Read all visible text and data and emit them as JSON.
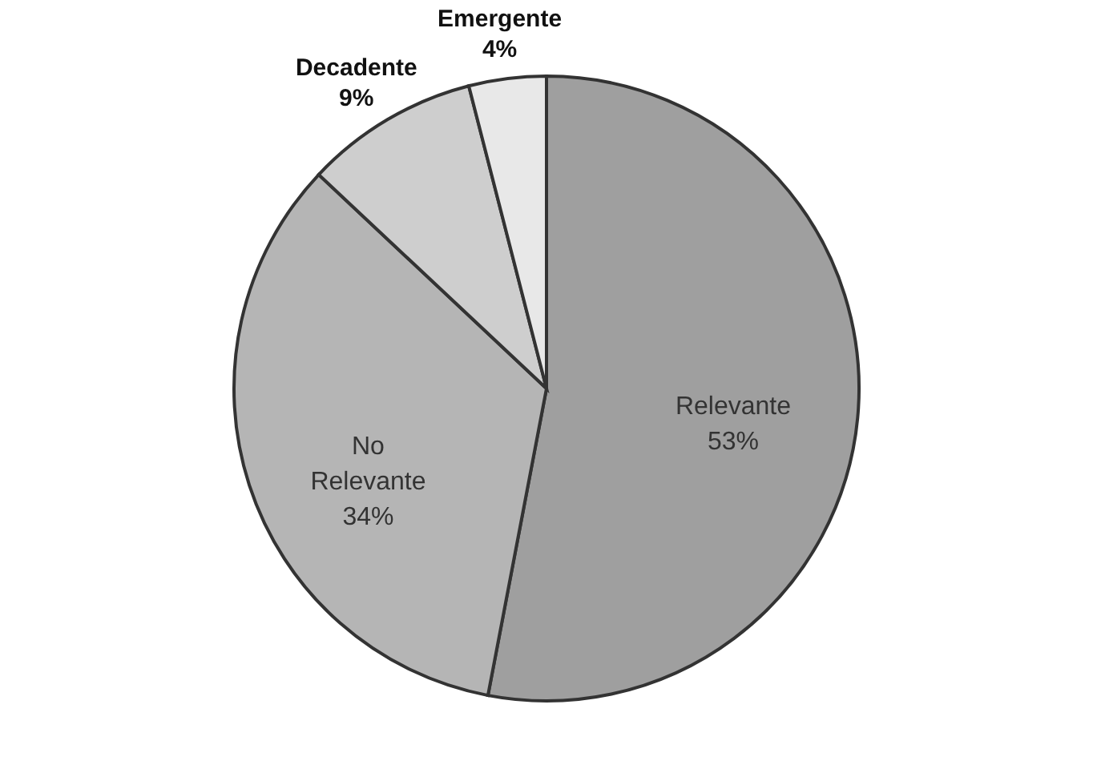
{
  "chart_data": {
    "type": "pie",
    "categories": [
      "Relevante",
      "No Relevante",
      "Decadente",
      "Emergente"
    ],
    "values": [
      53,
      34,
      9,
      4
    ],
    "colors": [
      "#9f9f9f",
      "#b5b5b5",
      "#cecece",
      "#e8e8e8"
    ],
    "value_labels": [
      "53%",
      "34%",
      "9%",
      "4%"
    ]
  }
}
